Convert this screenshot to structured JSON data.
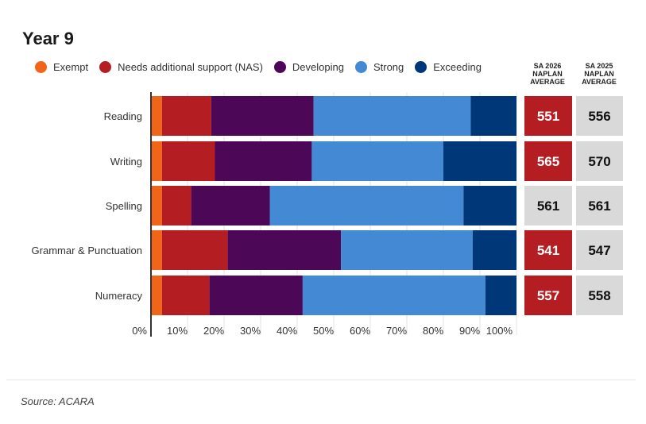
{
  "title": "Year 9",
  "source": "Source: ACARA",
  "legend": [
    {
      "label": "Exempt",
      "color": "#f26418"
    },
    {
      "label": "Needs additional support (NAS)",
      "color": "#b41e23"
    },
    {
      "label": "Developing",
      "color": "#4d0757"
    },
    {
      "label": "Strong",
      "color": "#4489d4"
    },
    {
      "label": "Exceeding",
      "color": "#003779"
    }
  ],
  "columns": {
    "sa2026": "SA 2026 NAPLAN AVERAGE",
    "sa2025": "SA 2025 NAPLAN AVERAGE"
  },
  "highlight_color": "#b41e23",
  "neutral_color": "#d9d9d9",
  "chart_data": {
    "type": "bar",
    "orientation": "horizontal",
    "stacked": true,
    "categories": [
      "Reading",
      "Writing",
      "Spelling",
      "Grammar & Punctuation",
      "Numeracy"
    ],
    "series": [
      {
        "name": "Exempt",
        "values": [
          3,
          3,
          3,
          3,
          3
        ]
      },
      {
        "name": "Needs additional support (NAS)",
        "values": [
          13.5,
          14.5,
          8,
          18,
          13
        ]
      },
      {
        "name": "Developing",
        "values": [
          28,
          26.5,
          21.5,
          31,
          25.5
        ]
      },
      {
        "name": "Strong",
        "values": [
          43,
          36,
          53,
          36,
          50
        ]
      },
      {
        "name": "Exceeding",
        "values": [
          12.5,
          20,
          14.5,
          12,
          8.5
        ]
      }
    ],
    "xlim": [
      0,
      100
    ],
    "xticks": [
      "0%",
      "10%",
      "20%",
      "30%",
      "40%",
      "50%",
      "60%",
      "70%",
      "80%",
      "90%",
      "100%"
    ],
    "sa2026_average": [
      551,
      565,
      561,
      541,
      557
    ],
    "sa2025_average": [
      556,
      570,
      561,
      547,
      558
    ],
    "sa2026_highlighted": [
      true,
      true,
      false,
      true,
      true
    ]
  }
}
